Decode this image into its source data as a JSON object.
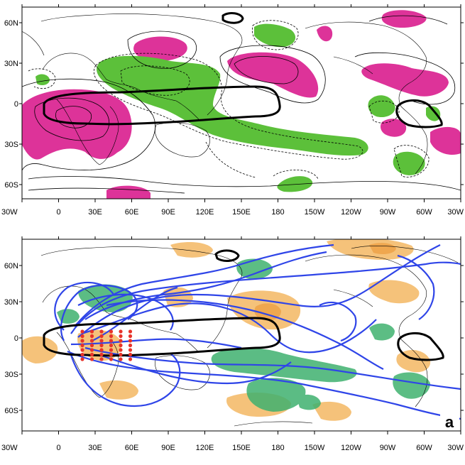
{
  "colors": {
    "positive_shading": "#dd3399",
    "negative_shading": "#5cc03a",
    "positive_light": "#f5c27a",
    "negative_light": "#3fb16f",
    "trajectory": "#2f45e8",
    "source_points": "#e8332a",
    "region_outline": "#000000"
  },
  "top_map": {
    "y_labels": [
      "60N",
      "30N",
      "0",
      "30S",
      "60S"
    ],
    "x_labels": [
      "30W",
      "0",
      "30E",
      "60E",
      "90E",
      "120E",
      "150E",
      "180",
      "150W",
      "120W",
      "90W",
      "60W",
      "30W"
    ]
  },
  "bottom_map": {
    "y_labels": [
      "60N",
      "30N",
      "0",
      "30S",
      "60S"
    ],
    "x_labels": [
      "30W",
      "0",
      "30E",
      "60E",
      "90E",
      "120E",
      "150E",
      "180",
      "150W",
      "120W",
      "90W",
      "60W",
      "30W"
    ],
    "panel_label": "a"
  }
}
